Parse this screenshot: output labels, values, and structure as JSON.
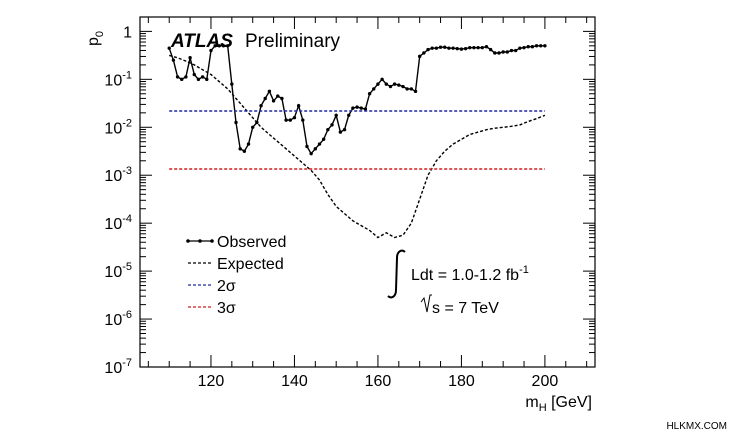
{
  "chart_data": {
    "type": "line",
    "xlabel": "m",
    "xlabel_sub": "H",
    "xlabel_unit": " [GeV]",
    "ylabel": "p",
    "ylabel_sub": "0",
    "xlim": [
      103,
      212
    ],
    "ylim_log10": [
      -7,
      0.3
    ],
    "y_scale": "log",
    "x_ticks": [
      120,
      140,
      160,
      180,
      200
    ],
    "x_tick_labels": [
      "120",
      "140",
      "160",
      "180",
      "200"
    ],
    "y_ticks_log10": [
      0,
      -1,
      -2,
      -3,
      -4,
      -5,
      -6,
      -7
    ],
    "y_tick_labels": [
      {
        "base": "1",
        "exp": ""
      },
      {
        "base": "10",
        "exp": "-1"
      },
      {
        "base": "10",
        "exp": "-2"
      },
      {
        "base": "10",
        "exp": "-3"
      },
      {
        "base": "10",
        "exp": "-4"
      },
      {
        "base": "10",
        "exp": "-5"
      },
      {
        "base": "10",
        "exp": "-6"
      },
      {
        "base": "10",
        "exp": "-7"
      }
    ],
    "legend_position": "lower-left",
    "series": [
      {
        "name": "Observed",
        "style": "solid-markers",
        "color": "#000000",
        "x": [
          110,
          111,
          112,
          113,
          114,
          115,
          116,
          117,
          118,
          119,
          120,
          121,
          122,
          123,
          124,
          125,
          126,
          127,
          128,
          129,
          130,
          131,
          132,
          133,
          134,
          135,
          136,
          137,
          138,
          139,
          140,
          141,
          142,
          143,
          144,
          145,
          146,
          147,
          148,
          149,
          150,
          151,
          152,
          153,
          154,
          155,
          156,
          157,
          158,
          159,
          160,
          161,
          162,
          163,
          164,
          165,
          166,
          167,
          168,
          169,
          170,
          171,
          172,
          173,
          174,
          175,
          176,
          177,
          178,
          179,
          180,
          181,
          182,
          183,
          184,
          185,
          186,
          187,
          188,
          189,
          190,
          191,
          192,
          193,
          194,
          195,
          196,
          197,
          198,
          199,
          200
        ],
        "log10p": [
          -0.35,
          -0.6,
          -0.95,
          -1.0,
          -0.95,
          -0.55,
          -0.9,
          -1.0,
          -0.95,
          -1.0,
          -0.4,
          -0.3,
          -0.3,
          -0.3,
          -0.3,
          -1.1,
          -1.9,
          -2.45,
          -2.5,
          -2.35,
          -2.0,
          -1.9,
          -1.55,
          -1.4,
          -1.25,
          -1.45,
          -1.35,
          -1.4,
          -1.85,
          -1.85,
          -1.8,
          -1.55,
          -1.85,
          -2.4,
          -2.55,
          -2.45,
          -2.35,
          -2.25,
          -2.05,
          -1.95,
          -1.75,
          -2.1,
          -2.05,
          -1.75,
          -1.6,
          -1.58,
          -1.6,
          -1.62,
          -1.3,
          -1.2,
          -1.1,
          -1.0,
          -1.1,
          -1.15,
          -1.1,
          -1.12,
          -1.15,
          -1.2,
          -1.2,
          -1.25,
          -0.52,
          -0.45,
          -0.38,
          -0.35,
          -0.35,
          -0.33,
          -0.33,
          -0.35,
          -0.35,
          -0.36,
          -0.37,
          -0.36,
          -0.34,
          -0.34,
          -0.34,
          -0.34,
          -0.32,
          -0.38,
          -0.45,
          -0.45,
          -0.43,
          -0.43,
          -0.4,
          -0.4,
          -0.35,
          -0.34,
          -0.32,
          -0.32,
          -0.3,
          -0.3,
          -0.3
        ]
      },
      {
        "name": "Expected",
        "style": "dashed",
        "color": "#000000",
        "x": [
          110,
          112,
          114,
          116,
          118,
          120,
          122,
          124,
          126,
          128,
          130,
          132,
          134,
          136,
          138,
          140,
          142,
          144,
          146,
          148,
          150,
          152,
          154,
          156,
          158,
          160,
          162,
          164,
          166,
          168,
          170,
          172,
          174,
          176,
          178,
          180,
          182,
          184,
          186,
          188,
          190,
          192,
          194,
          196,
          198,
          200
        ],
        "log10p": [
          -0.5,
          -0.55,
          -0.62,
          -0.7,
          -0.8,
          -0.9,
          -1.05,
          -1.2,
          -1.4,
          -1.6,
          -1.8,
          -2.0,
          -2.15,
          -2.3,
          -2.45,
          -2.6,
          -2.75,
          -2.9,
          -3.1,
          -3.4,
          -3.65,
          -3.8,
          -3.95,
          -4.05,
          -4.15,
          -4.3,
          -4.2,
          -4.3,
          -4.25,
          -4.0,
          -3.5,
          -3.0,
          -2.7,
          -2.5,
          -2.35,
          -2.25,
          -2.15,
          -2.1,
          -2.05,
          -2.02,
          -2.0,
          -1.98,
          -1.95,
          -1.88,
          -1.82,
          -1.75
        ]
      },
      {
        "name": "2σ",
        "style": "dashed",
        "color": "#1f2aa0",
        "x": [
          110,
          200
        ],
        "log10p": [
          -1.66,
          -1.66
        ]
      },
      {
        "name": "3σ",
        "style": "dashed",
        "color": "#d11f1f",
        "x": [
          110,
          200
        ],
        "log10p": [
          -2.87,
          -2.87
        ]
      }
    ]
  },
  "annotations": {
    "experiment": "ATLAS",
    "status": "Preliminary",
    "lumi_prefix": "Ldt = 1.0-1.2 fb",
    "lumi_exp": "-1",
    "energy": "s = 7 TeV"
  },
  "watermark": "HLKMX.COM"
}
